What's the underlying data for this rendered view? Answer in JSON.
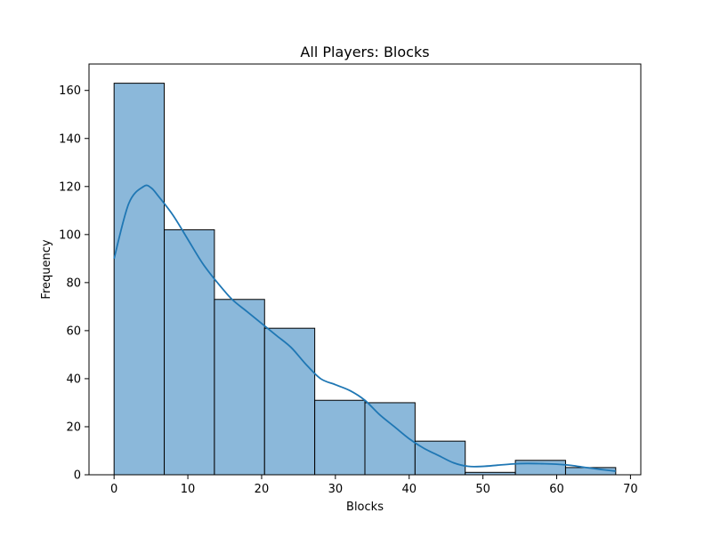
{
  "chart_data": {
    "type": "bar",
    "title": "All Players: Blocks",
    "xlabel": "Blocks",
    "ylabel": "Frequency",
    "bin_edges": [
      0,
      6.8,
      13.6,
      20.4,
      27.2,
      34.0,
      40.8,
      47.6,
      54.4,
      61.2,
      68.0
    ],
    "values": [
      163,
      102,
      73,
      61,
      31,
      30,
      14,
      1,
      6,
      3
    ],
    "xlim": [
      -3.4,
      71.4
    ],
    "ylim": [
      0,
      171
    ],
    "xticks": [
      0,
      10,
      20,
      30,
      40,
      50,
      60,
      70
    ],
    "yticks": [
      0,
      20,
      40,
      60,
      80,
      100,
      120,
      140,
      160
    ],
    "kde": {
      "x": [
        0,
        2,
        4,
        5,
        6,
        8,
        10,
        12,
        14,
        16,
        18,
        20,
        22,
        24,
        26,
        28,
        30,
        32,
        34,
        36,
        38,
        40,
        42,
        44,
        46,
        48,
        50,
        52,
        54,
        56,
        58,
        60,
        62,
        64,
        66,
        68
      ],
      "y": [
        90,
        113,
        120,
        119.5,
        116,
        108,
        98,
        88,
        80,
        73,
        68,
        63,
        58,
        53,
        46,
        40,
        37.5,
        35,
        31,
        25,
        20,
        15,
        11,
        8,
        5,
        3.5,
        3.5,
        4,
        4.5,
        4.7,
        4.6,
        4.4,
        3.9,
        3,
        2.2,
        1.5
      ]
    },
    "bar_color": "#8bb8da",
    "bar_edge_color": "#000000",
    "line_color": "#1f77b4",
    "grid": false,
    "legend": "none"
  }
}
